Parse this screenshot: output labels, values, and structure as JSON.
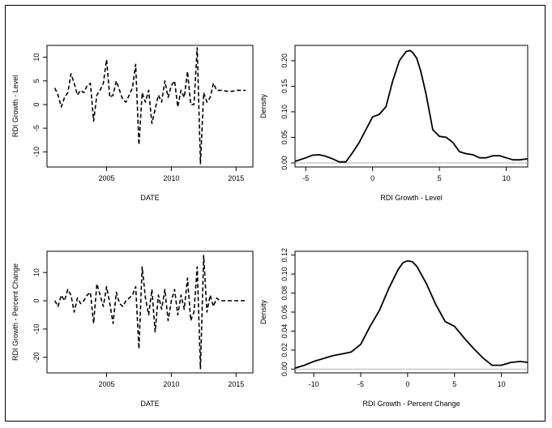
{
  "chart_data": [
    {
      "id": "ts-level",
      "type": "line",
      "xlabel": "DATE",
      "ylabel": "RDI Growth - Level",
      "xlim": [
        2000.4,
        2016.3
      ],
      "ylim": [
        -13.2,
        12.5
      ],
      "xticks": [
        2005,
        2010,
        2015
      ],
      "xtick_labels": [
        "2005",
        "2010",
        "2015"
      ],
      "yticks": [
        -10,
        -5,
        0,
        5,
        10
      ],
      "ytick_labels": [
        "-10",
        "-5",
        "0",
        "5",
        "10"
      ],
      "line_style": "dashed",
      "x": [
        2001.0,
        2001.25,
        2001.5,
        2001.75,
        2002.0,
        2002.25,
        2002.5,
        2002.75,
        2003.0,
        2003.25,
        2003.5,
        2003.75,
        2004.0,
        2004.25,
        2004.5,
        2004.75,
        2005.0,
        2005.25,
        2005.5,
        2005.75,
        2006.0,
        2006.25,
        2006.5,
        2006.75,
        2007.0,
        2007.25,
        2007.5,
        2007.75,
        2008.0,
        2008.25,
        2008.5,
        2008.75,
        2009.0,
        2009.25,
        2009.5,
        2009.75,
        2010.0,
        2010.25,
        2010.5,
        2010.75,
        2011.0,
        2011.25,
        2011.5,
        2011.75,
        2012.0,
        2012.25,
        2012.5,
        2012.75,
        2013.0,
        2013.25,
        2013.5,
        2013.75,
        2014.0,
        2014.25,
        2014.5,
        2014.75,
        2015.0,
        2015.25,
        2015.5,
        2015.75
      ],
      "values": [
        3.5,
        2.0,
        -0.5,
        1.5,
        2.5,
        6.5,
        4.5,
        2.0,
        3.0,
        2.5,
        4.0,
        4.5,
        -3.5,
        2.0,
        3.0,
        4.5,
        9.5,
        1.5,
        2.0,
        5.0,
        3.0,
        1.0,
        0.5,
        2.0,
        3.5,
        8.5,
        -8.5,
        2.5,
        0.5,
        3.0,
        -4.0,
        -1.0,
        2.0,
        0.5,
        5.0,
        1.5,
        4.0,
        5.0,
        -0.5,
        3.0,
        1.5,
        7.0,
        0.0,
        0.0,
        12.0,
        -12.5,
        2.5,
        0.5,
        1.5,
        4.5,
        3.0,
        3.0,
        3.0,
        2.8,
        2.8,
        2.8,
        3.0,
        3.0,
        3.0,
        3.0
      ]
    },
    {
      "id": "density-level",
      "type": "line",
      "xlabel": "RDI Growth - Level",
      "ylabel": "Density",
      "xlim": [
        -5.8,
        11.6
      ],
      "ylim": [
        -0.008,
        0.23
      ],
      "xticks": [
        -5,
        0,
        5,
        10
      ],
      "xtick_labels": [
        "-5",
        "0",
        "5",
        "10"
      ],
      "yticks": [
        0.0,
        0.05,
        0.1,
        0.15,
        0.2
      ],
      "ytick_labels": [
        "0.00",
        "0.05",
        "0.10",
        "0.15",
        "0.20"
      ],
      "baseline": 0,
      "line_style": "solid",
      "x": [
        -5.8,
        -5.0,
        -4.5,
        -4.0,
        -3.5,
        -3.0,
        -2.5,
        -2.0,
        -1.5,
        -1.0,
        -0.5,
        0.0,
        0.5,
        1.0,
        1.5,
        2.0,
        2.5,
        2.8,
        3.0,
        3.3,
        3.6,
        4.0,
        4.5,
        5.0,
        5.5,
        6.0,
        6.5,
        7.0,
        7.5,
        8.0,
        8.5,
        9.0,
        9.5,
        10.0,
        10.5,
        11.0,
        11.6
      ],
      "values": [
        0.003,
        0.01,
        0.015,
        0.016,
        0.013,
        0.008,
        0.002,
        0.002,
        0.02,
        0.04,
        0.065,
        0.09,
        0.095,
        0.11,
        0.16,
        0.2,
        0.218,
        0.22,
        0.216,
        0.205,
        0.18,
        0.135,
        0.065,
        0.052,
        0.05,
        0.04,
        0.022,
        0.018,
        0.016,
        0.01,
        0.01,
        0.014,
        0.014,
        0.01,
        0.006,
        0.006,
        0.008
      ]
    },
    {
      "id": "ts-pct",
      "type": "line",
      "xlabel": "DATE",
      "ylabel": "RDI Growth - Percent Change",
      "xlim": [
        2000.4,
        2016.3
      ],
      "ylim": [
        -25.5,
        17.5
      ],
      "xticks": [
        2005,
        2010,
        2015
      ],
      "xtick_labels": [
        "2005",
        "2010",
        "2015"
      ],
      "yticks": [
        -20,
        -10,
        0,
        10
      ],
      "ytick_labels": [
        "-20",
        "-10",
        "0",
        "10"
      ],
      "line_style": "dashed",
      "x": [
        2001.0,
        2001.25,
        2001.5,
        2001.75,
        2002.0,
        2002.25,
        2002.5,
        2002.75,
        2003.0,
        2003.25,
        2003.5,
        2003.75,
        2004.0,
        2004.25,
        2004.5,
        2004.75,
        2005.0,
        2005.25,
        2005.5,
        2005.75,
        2006.0,
        2006.25,
        2006.5,
        2006.75,
        2007.0,
        2007.25,
        2007.5,
        2007.75,
        2008.0,
        2008.25,
        2008.5,
        2008.75,
        2009.0,
        2009.25,
        2009.5,
        2009.75,
        2010.0,
        2010.25,
        2010.5,
        2010.75,
        2011.0,
        2011.25,
        2011.5,
        2011.75,
        2012.0,
        2012.25,
        2012.5,
        2012.75,
        2013.0,
        2013.25,
        2013.5,
        2013.75,
        2014.0,
        2014.25,
        2014.5,
        2014.75,
        2015.0,
        2015.25,
        2015.5,
        2015.75
      ],
      "values": [
        0,
        -2,
        2,
        0,
        4,
        2,
        -4,
        1,
        -1,
        0,
        2,
        3,
        -8,
        6,
        2,
        -2,
        5,
        -1,
        -8,
        3,
        -1,
        -2,
        0,
        1,
        2,
        5,
        -17,
        12,
        1,
        -5,
        4,
        -11,
        2,
        -3,
        4,
        -7,
        0,
        4,
        -5,
        2,
        -3,
        8,
        -7,
        -4,
        12,
        -24,
        16,
        -4,
        2,
        -2,
        1,
        0,
        0,
        0,
        0,
        0,
        0,
        0,
        0,
        0
      ]
    },
    {
      "id": "density-pct",
      "type": "line",
      "xlabel": "RDI Growth - Percent Change",
      "ylabel": "Density",
      "xlim": [
        -12.0,
        12.8
      ],
      "ylim": [
        -0.004,
        0.124
      ],
      "xticks": [
        -10,
        -5,
        0,
        5,
        10
      ],
      "xtick_labels": [
        "-10",
        "-5",
        "0",
        "5",
        "10"
      ],
      "yticks": [
        0.0,
        0.02,
        0.04,
        0.06,
        0.08,
        0.1,
        0.12
      ],
      "ytick_labels": [
        "0.00",
        "0.02",
        "0.04",
        "0.06",
        "0.08",
        "0.10",
        "0.12"
      ],
      "baseline": 0,
      "line_style": "solid",
      "x": [
        -12.0,
        -11.0,
        -10.0,
        -9.0,
        -8.0,
        -7.0,
        -6.0,
        -5.0,
        -4.0,
        -3.0,
        -2.0,
        -1.0,
        -0.5,
        0.0,
        0.5,
        1.0,
        2.0,
        3.0,
        4.0,
        5.0,
        6.0,
        7.0,
        8.0,
        9.0,
        10.0,
        11.0,
        12.0,
        12.8
      ],
      "values": [
        0.001,
        0.004,
        0.008,
        0.011,
        0.014,
        0.016,
        0.018,
        0.026,
        0.045,
        0.062,
        0.085,
        0.105,
        0.112,
        0.114,
        0.113,
        0.108,
        0.09,
        0.068,
        0.05,
        0.045,
        0.033,
        0.022,
        0.012,
        0.004,
        0.004,
        0.007,
        0.008,
        0.007
      ]
    }
  ]
}
